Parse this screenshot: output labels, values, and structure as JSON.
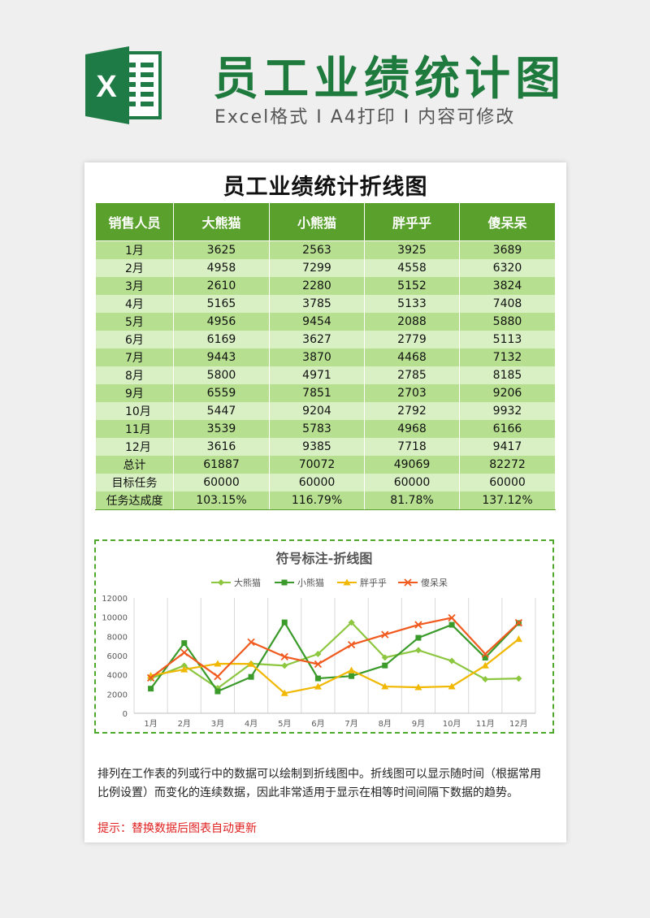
{
  "header": {
    "logo_letter": "X",
    "title": "员工业绩统计图",
    "subtitle": "Excel格式 I A4打印 I 内容可修改"
  },
  "sheet": {
    "title": "员工业绩统计折线图",
    "columns": [
      "销售人员",
      "大熊猫",
      "小熊猫",
      "胖乎乎",
      "傻呆呆"
    ],
    "rows": [
      {
        "label": "1月",
        "values": [
          "3625",
          "2563",
          "3925",
          "3689"
        ]
      },
      {
        "label": "2月",
        "values": [
          "4958",
          "7299",
          "4558",
          "6320"
        ]
      },
      {
        "label": "3月",
        "values": [
          "2610",
          "2280",
          "5152",
          "3824"
        ]
      },
      {
        "label": "4月",
        "values": [
          "5165",
          "3785",
          "5133",
          "7408"
        ]
      },
      {
        "label": "5月",
        "values": [
          "4956",
          "9454",
          "2088",
          "5880"
        ]
      },
      {
        "label": "6月",
        "values": [
          "6169",
          "3627",
          "2779",
          "5113"
        ]
      },
      {
        "label": "7月",
        "values": [
          "9443",
          "3870",
          "4468",
          "7132"
        ]
      },
      {
        "label": "8月",
        "values": [
          "5800",
          "4971",
          "2785",
          "8185"
        ]
      },
      {
        "label": "9月",
        "values": [
          "6559",
          "7851",
          "2703",
          "9206"
        ]
      },
      {
        "label": "10月",
        "values": [
          "5447",
          "9204",
          "2792",
          "9932"
        ]
      },
      {
        "label": "11月",
        "values": [
          "3539",
          "5783",
          "4968",
          "6166"
        ]
      },
      {
        "label": "12月",
        "values": [
          "3616",
          "9385",
          "7718",
          "9417"
        ]
      }
    ],
    "summary": [
      {
        "label": "总计",
        "values": [
          "61887",
          "70072",
          "49069",
          "82272"
        ]
      },
      {
        "label": "目标任务",
        "values": [
          "60000",
          "60000",
          "60000",
          "60000"
        ]
      },
      {
        "label": "任务达成度",
        "values": [
          "103.15%",
          "116.79%",
          "81.78%",
          "137.12%"
        ]
      }
    ]
  },
  "chart_data": {
    "type": "line",
    "title": "符号标注-折线图",
    "categories": [
      "1月",
      "2月",
      "3月",
      "4月",
      "5月",
      "6月",
      "7月",
      "8月",
      "9月",
      "10月",
      "11月",
      "12月"
    ],
    "series": [
      {
        "name": "大熊猫",
        "marker": "diamond",
        "color": "#8dc63f",
        "values": [
          3625,
          4958,
          2610,
          5165,
          4956,
          6169,
          9443,
          5800,
          6559,
          5447,
          3539,
          3616
        ]
      },
      {
        "name": "小熊猫",
        "marker": "square",
        "color": "#3a9a2a",
        "values": [
          2563,
          7299,
          2280,
          3785,
          9454,
          3627,
          3870,
          4971,
          7851,
          9204,
          5783,
          9385
        ]
      },
      {
        "name": "胖乎乎",
        "marker": "triangle",
        "color": "#f0b800",
        "values": [
          3925,
          4558,
          5152,
          5133,
          2088,
          2779,
          4468,
          2785,
          2703,
          2792,
          4968,
          7718
        ]
      },
      {
        "name": "傻呆呆",
        "marker": "x",
        "color": "#f05a1e",
        "values": [
          3689,
          6320,
          3824,
          7408,
          5880,
          5113,
          7132,
          8185,
          9206,
          9932,
          6166,
          9417
        ]
      }
    ],
    "ylim": [
      0,
      12000
    ],
    "yticks": [
      0,
      2000,
      4000,
      6000,
      8000,
      10000,
      12000
    ],
    "xlabel": "",
    "ylabel": "",
    "grid": "vertical",
    "legend": "top"
  },
  "description": "排列在工作表的列或行中的数据可以绘制到折线图中。折线图可以显示随时间（根据常用比例设置）而变化的连续数据，因此非常适用于显示在相等时间间隔下数据的趋势。",
  "tip": "提示：替换数据后图表自动更新"
}
